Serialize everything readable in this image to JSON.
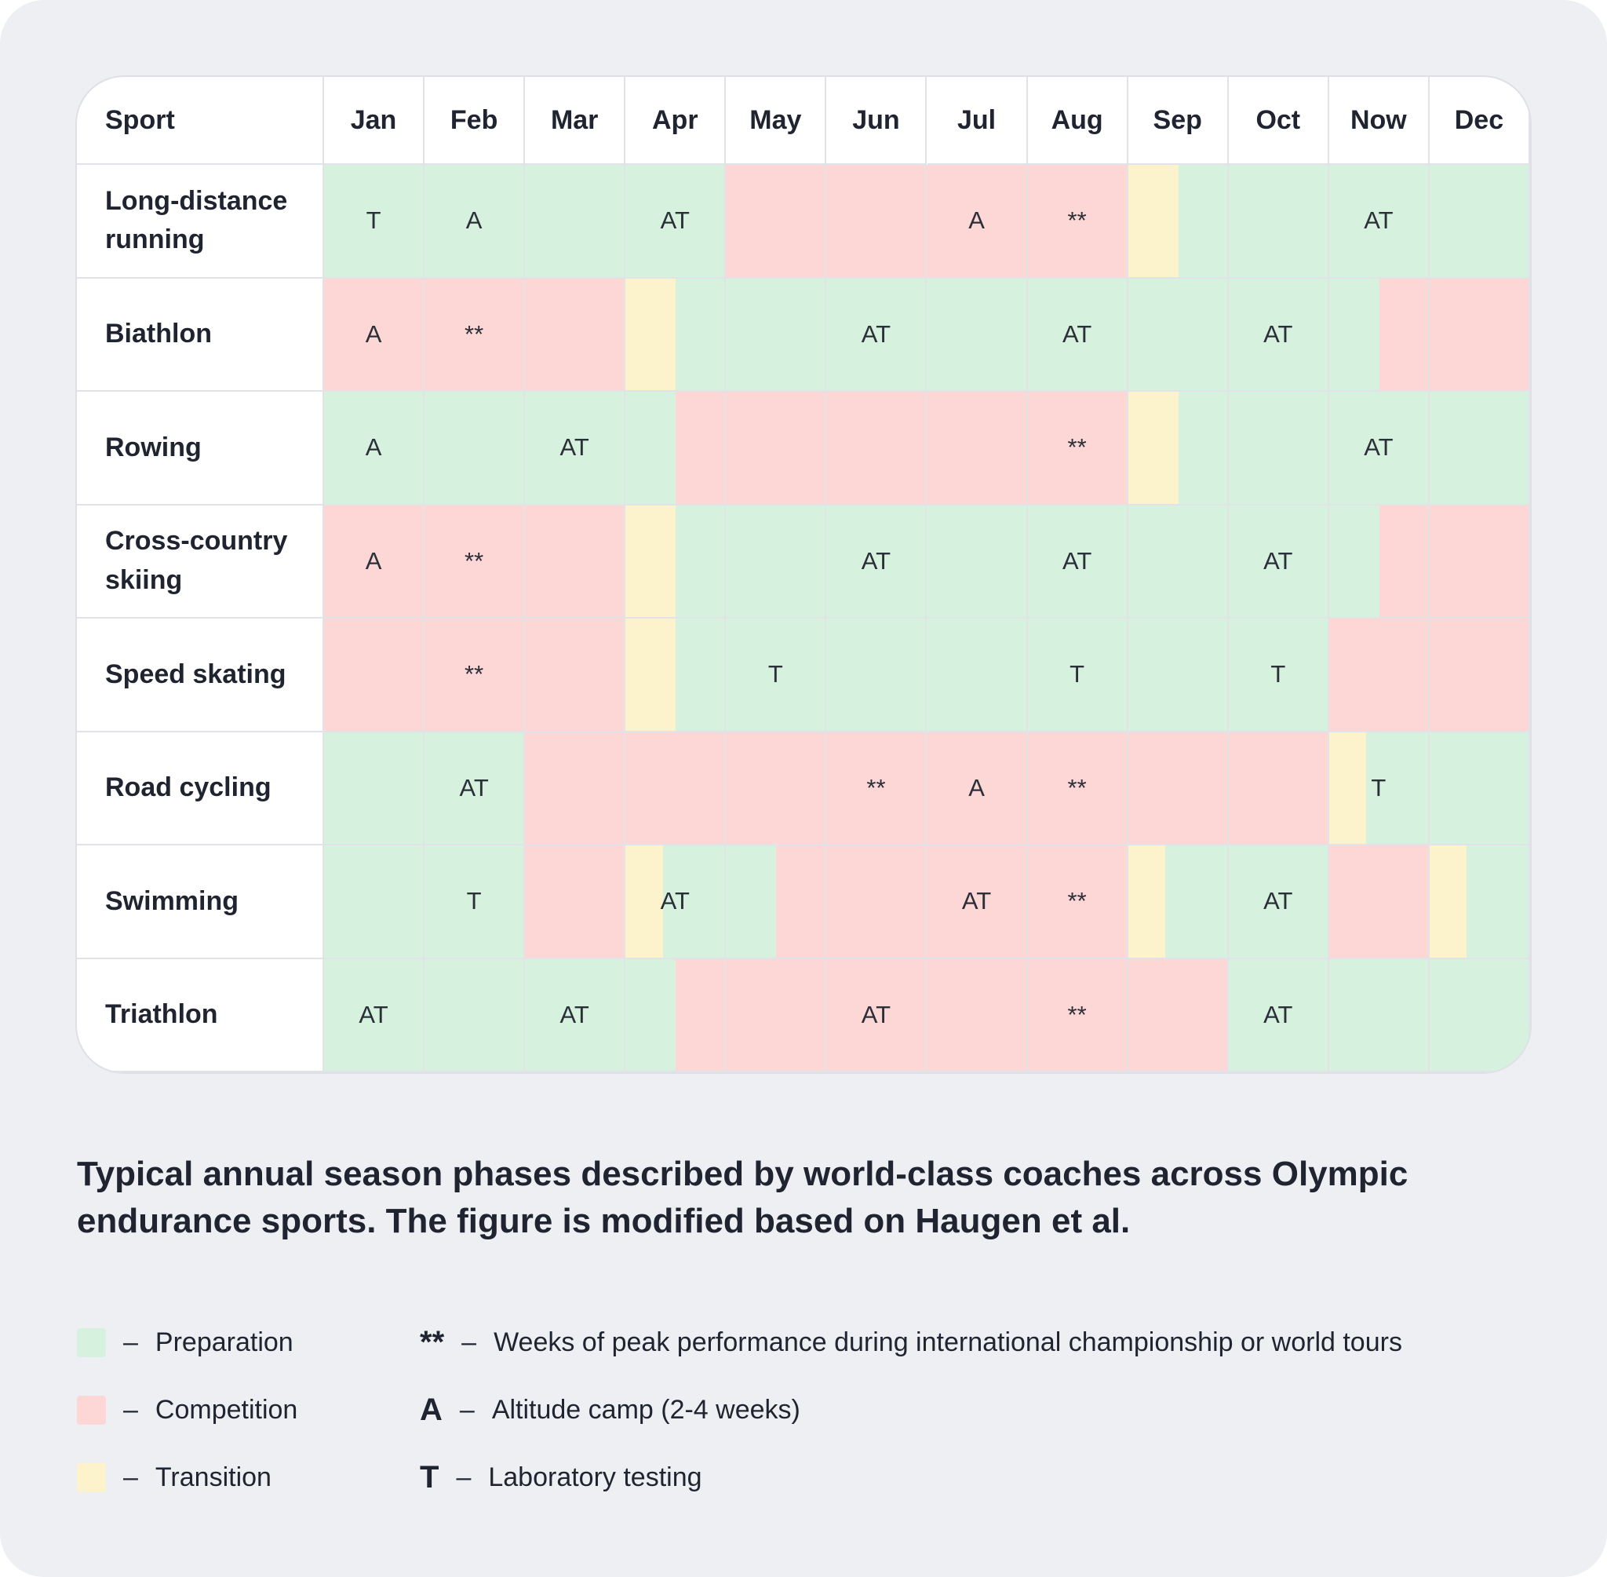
{
  "table": {
    "header": [
      "Sport",
      "Jan",
      "Feb",
      "Mar",
      "Apr",
      "May",
      "Jun",
      "Jul",
      "Aug",
      "Sep",
      "Oct",
      "Now",
      "Dec"
    ],
    "rows": [
      {
        "sport": "Long-distance running",
        "phases": [
          {
            "phase": "Preparation",
            "from": 0,
            "to": 4
          },
          {
            "phase": "Competition",
            "from": 4,
            "to": 8
          },
          {
            "phase": "Transition",
            "from": 8,
            "to": 8.5
          },
          {
            "phase": "Preparation",
            "from": 8.5,
            "to": 12
          }
        ],
        "marks": [
          "T",
          "A",
          null,
          "AT",
          null,
          null,
          "A",
          "**",
          null,
          null,
          "AT",
          null
        ]
      },
      {
        "sport": "Biathlon",
        "phases": [
          {
            "phase": "Competition",
            "from": 0,
            "to": 3
          },
          {
            "phase": "Transition",
            "from": 3,
            "to": 3.5
          },
          {
            "phase": "Preparation",
            "from": 3.5,
            "to": 10.5
          },
          {
            "phase": "Competition",
            "from": 10.5,
            "to": 12
          }
        ],
        "marks": [
          "A",
          "**",
          null,
          null,
          null,
          "AT",
          null,
          "AT",
          null,
          "AT",
          null,
          null
        ]
      },
      {
        "sport": "Rowing",
        "phases": [
          {
            "phase": "Preparation",
            "from": 0,
            "to": 3.5
          },
          {
            "phase": "Competition",
            "from": 3.5,
            "to": 8
          },
          {
            "phase": "Transition",
            "from": 8,
            "to": 8.5
          },
          {
            "phase": "Preparation",
            "from": 8.5,
            "to": 12
          }
        ],
        "marks": [
          "A",
          null,
          "AT",
          null,
          null,
          null,
          null,
          "**",
          null,
          null,
          "AT",
          null
        ]
      },
      {
        "sport": "Cross-country skiing",
        "phases": [
          {
            "phase": "Competition",
            "from": 0,
            "to": 3
          },
          {
            "phase": "Transition",
            "from": 3,
            "to": 3.5
          },
          {
            "phase": "Preparation",
            "from": 3.5,
            "to": 10.5
          },
          {
            "phase": "Competition",
            "from": 10.5,
            "to": 12
          }
        ],
        "marks": [
          "A",
          "**",
          null,
          null,
          null,
          "AT",
          null,
          "AT",
          null,
          "AT",
          null,
          null
        ]
      },
      {
        "sport": "Speed skating",
        "phases": [
          {
            "phase": "Competition",
            "from": 0,
            "to": 3
          },
          {
            "phase": "Transition",
            "from": 3,
            "to": 3.5
          },
          {
            "phase": "Preparation",
            "from": 3.5,
            "to": 10
          },
          {
            "phase": "Competition",
            "from": 10,
            "to": 12
          }
        ],
        "marks": [
          null,
          "**",
          null,
          null,
          "T",
          null,
          null,
          "T",
          null,
          "T",
          null,
          null
        ]
      },
      {
        "sport": "Road cycling",
        "phases": [
          {
            "phase": "Preparation",
            "from": 0,
            "to": 2
          },
          {
            "phase": "Competition",
            "from": 2,
            "to": 10
          },
          {
            "phase": "Transition",
            "from": 10,
            "to": 10.37
          },
          {
            "phase": "Preparation",
            "from": 10.37,
            "to": 12
          }
        ],
        "marks": [
          null,
          "AT",
          null,
          null,
          null,
          "**",
          "A",
          "**",
          null,
          null,
          "T",
          null
        ]
      },
      {
        "sport": "Swimming",
        "phases": [
          {
            "phase": "Preparation",
            "from": 0,
            "to": 2
          },
          {
            "phase": "Competition",
            "from": 2,
            "to": 3
          },
          {
            "phase": "Transition",
            "from": 3,
            "to": 3.37
          },
          {
            "phase": "Preparation",
            "from": 3.37,
            "to": 4.5
          },
          {
            "phase": "Competition",
            "from": 4.5,
            "to": 8
          },
          {
            "phase": "Transition",
            "from": 8,
            "to": 8.37
          },
          {
            "phase": "Preparation",
            "from": 8.37,
            "to": 10
          },
          {
            "phase": "Competition",
            "from": 10,
            "to": 11
          },
          {
            "phase": "Transition",
            "from": 11,
            "to": 11.37
          },
          {
            "phase": "Preparation",
            "from": 11.37,
            "to": 12
          }
        ],
        "marks": [
          null,
          "T",
          null,
          "AT",
          null,
          null,
          "AT",
          "**",
          null,
          "AT",
          null,
          null
        ]
      },
      {
        "sport": "Triathlon",
        "phases": [
          {
            "phase": "Preparation",
            "from": 0,
            "to": 3.5
          },
          {
            "phase": "Competition",
            "from": 3.5,
            "to": 9
          },
          {
            "phase": "Preparation",
            "from": 9,
            "to": 12
          }
        ],
        "marks": [
          "AT",
          null,
          "AT",
          null,
          null,
          "AT",
          null,
          "**",
          null,
          "AT",
          null,
          null
        ]
      }
    ]
  },
  "caption": "Typical annual season phases described by world-class coaches across Olympic endurance sports. The figure is modified based on Haugen et al.",
  "legend": {
    "separator": "–",
    "phases": [
      {
        "name": "Preparation",
        "color": "#d6f2de"
      },
      {
        "name": "Competition",
        "color": "#fdd6d6"
      },
      {
        "name": "Transition",
        "color": "#fcf3cc"
      }
    ],
    "symbols": [
      {
        "symbol": "**",
        "text": "Weeks of peak performance during international championship or world tours"
      },
      {
        "symbol": "A",
        "text": "Altitude camp (2-4 weeks)"
      },
      {
        "symbol": "T",
        "text": "Laboratory testing"
      }
    ]
  }
}
